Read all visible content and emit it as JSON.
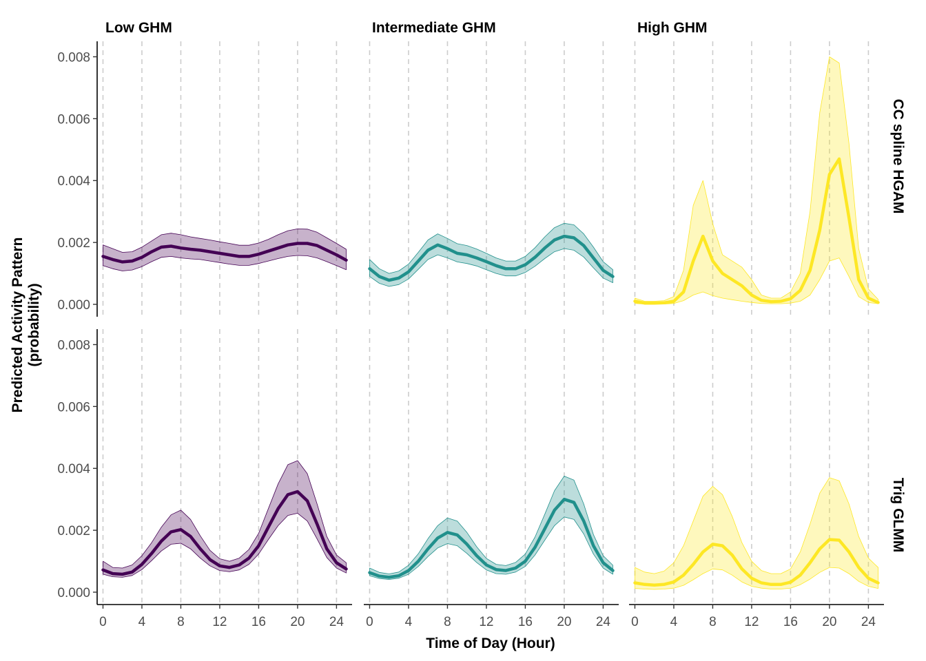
{
  "chart_data": {
    "type": "line",
    "xlabel": "Time of Day (Hour)",
    "ylabel_line1": "Predicted Activity Pattern",
    "ylabel_line2": "(probability)",
    "xlim": [
      -0.6,
      25.6
    ],
    "ylim": [
      -0.0004,
      0.0085
    ],
    "xticks": [
      0,
      4,
      8,
      12,
      16,
      20,
      24
    ],
    "yticks": [
      0.0,
      0.002,
      0.004,
      0.006,
      0.008
    ],
    "ytick_labels": [
      "0.000",
      "0.002",
      "0.004",
      "0.006",
      "0.008"
    ],
    "grid": "vertical dashed at x ticks",
    "columns": [
      "Low GHM",
      "Intermediate GHM",
      "High GHM"
    ],
    "rows": [
      "CC spline HGAM",
      "Trig GLMM"
    ],
    "colors": {
      "Low GHM": "#440154",
      "Intermediate GHM": "#21908C",
      "High GHM": "#FDE725"
    },
    "x": [
      0,
      1,
      2,
      3,
      4,
      5,
      6,
      7,
      8,
      9,
      10,
      11,
      12,
      13,
      14,
      15,
      16,
      17,
      18,
      19,
      20,
      21,
      22,
      23,
      24,
      25
    ],
    "panels": [
      {
        "row": "CC spline HGAM",
        "column": "Low GHM",
        "fit": [
          0.00155,
          0.00145,
          0.00137,
          0.0014,
          0.00152,
          0.0017,
          0.00185,
          0.00188,
          0.00182,
          0.00178,
          0.00175,
          0.0017,
          0.00165,
          0.0016,
          0.00155,
          0.00155,
          0.00162,
          0.00172,
          0.00182,
          0.00192,
          0.00197,
          0.00197,
          0.0019,
          0.00175,
          0.0016,
          0.00143
        ],
        "lower": [
          0.00125,
          0.00115,
          0.00108,
          0.00111,
          0.00122,
          0.00138,
          0.00152,
          0.00155,
          0.0015,
          0.00147,
          0.00145,
          0.0014,
          0.00135,
          0.0013,
          0.00126,
          0.00126,
          0.00132,
          0.0014,
          0.00148,
          0.00155,
          0.00158,
          0.00157,
          0.0015,
          0.00138,
          0.00125,
          0.00112
        ],
        "upper": [
          0.00192,
          0.0018,
          0.00168,
          0.0017,
          0.00185,
          0.00205,
          0.00225,
          0.0023,
          0.00225,
          0.00218,
          0.00213,
          0.00208,
          0.00202,
          0.00197,
          0.00191,
          0.00191,
          0.00198,
          0.0021,
          0.00225,
          0.00238,
          0.00244,
          0.00243,
          0.00233,
          0.00215,
          0.00197,
          0.00178
        ]
      },
      {
        "row": "CC spline HGAM",
        "column": "Intermediate GHM",
        "fit": [
          0.00115,
          0.0009,
          0.00078,
          0.00085,
          0.00105,
          0.0014,
          0.00175,
          0.00192,
          0.0018,
          0.00165,
          0.0016,
          0.0015,
          0.00138,
          0.00125,
          0.00115,
          0.00115,
          0.00128,
          0.00152,
          0.00182,
          0.00208,
          0.0022,
          0.00215,
          0.0019,
          0.0015,
          0.0011,
          0.0009
        ],
        "lower": [
          0.0009,
          0.00068,
          0.00058,
          0.00064,
          0.00082,
          0.00113,
          0.00145,
          0.0016,
          0.0015,
          0.00137,
          0.00132,
          0.00124,
          0.00112,
          0.001,
          0.00092,
          0.00092,
          0.00103,
          0.00123,
          0.00148,
          0.0017,
          0.0018,
          0.00175,
          0.00153,
          0.00118,
          0.00085,
          0.0007
        ],
        "upper": [
          0.00145,
          0.00115,
          0.001,
          0.00108,
          0.0013,
          0.00168,
          0.00208,
          0.00228,
          0.00213,
          0.00196,
          0.0019,
          0.00179,
          0.00165,
          0.0015,
          0.0014,
          0.0014,
          0.00155,
          0.00183,
          0.00218,
          0.00248,
          0.00262,
          0.00257,
          0.00228,
          0.00185,
          0.00138,
          0.00112
        ]
      },
      {
        "row": "CC spline HGAM",
        "column": "High GHM",
        "fit": [
          0.0001,
          4e-05,
          4e-05,
          5e-05,
          0.0001,
          0.0004,
          0.0014,
          0.0022,
          0.0014,
          0.001,
          0.0008,
          0.0006,
          0.0003,
          0.00013,
          9e-05,
          0.0001,
          0.00018,
          0.00045,
          0.0011,
          0.0024,
          0.0042,
          0.0047,
          0.0028,
          0.0008,
          0.0002,
          6e-05
        ],
        "lower": [
          3e-05,
          1e-05,
          1e-05,
          1e-05,
          3e-05,
          0.00012,
          0.0003,
          0.0004,
          0.00028,
          0.0002,
          0.00015,
          0.0001,
          6e-05,
          3e-05,
          2e-05,
          2e-05,
          4e-05,
          0.0001,
          0.0003,
          0.0008,
          0.0014,
          0.0015,
          0.0009,
          0.00025,
          6e-05,
          2e-05
        ],
        "upper": [
          0.0002,
          0.0001,
          0.0001,
          0.00012,
          0.00025,
          0.0011,
          0.0032,
          0.004,
          0.0026,
          0.0016,
          0.0014,
          0.0012,
          0.0008,
          0.0003,
          0.0002,
          0.0002,
          0.0004,
          0.001,
          0.003,
          0.0062,
          0.008,
          0.0078,
          0.0052,
          0.0018,
          0.0005,
          0.00016
        ]
      },
      {
        "row": "Trig GLMM",
        "column": "Low GHM",
        "fit": [
          0.00072,
          0.0006,
          0.00058,
          0.00065,
          0.0009,
          0.00125,
          0.00165,
          0.00195,
          0.00202,
          0.0018,
          0.0014,
          0.00105,
          0.00085,
          0.0008,
          0.00088,
          0.0011,
          0.0015,
          0.0021,
          0.0027,
          0.00315,
          0.00325,
          0.00295,
          0.0022,
          0.0014,
          0.00095,
          0.00075
        ],
        "lower": [
          0.00058,
          0.0005,
          0.00048,
          0.00054,
          0.00073,
          0.00102,
          0.00133,
          0.00155,
          0.00158,
          0.0014,
          0.0011,
          0.00085,
          0.0007,
          0.00066,
          0.00072,
          0.0009,
          0.00123,
          0.0017,
          0.00215,
          0.00248,
          0.00255,
          0.0023,
          0.00172,
          0.00112,
          0.00078,
          0.00062
        ],
        "upper": [
          0.001,
          0.0008,
          0.00078,
          0.00088,
          0.00118,
          0.0016,
          0.0021,
          0.0025,
          0.00265,
          0.00235,
          0.00182,
          0.00135,
          0.00108,
          0.001,
          0.0011,
          0.00138,
          0.0019,
          0.0027,
          0.0035,
          0.00412,
          0.00425,
          0.00383,
          0.00285,
          0.0018,
          0.0012,
          0.00095
        ]
      },
      {
        "row": "Trig GLMM",
        "column": "Intermediate GHM",
        "fit": [
          0.00063,
          0.00052,
          0.00048,
          0.00053,
          0.0007,
          0.001,
          0.0014,
          0.00175,
          0.00193,
          0.00185,
          0.00155,
          0.00118,
          0.00088,
          0.00073,
          0.0007,
          0.00078,
          0.001,
          0.00145,
          0.00205,
          0.00265,
          0.003,
          0.0029,
          0.0023,
          0.0015,
          0.00095,
          0.0007
        ],
        "lower": [
          0.00053,
          0.00044,
          0.00041,
          0.00045,
          0.00058,
          0.00083,
          0.00115,
          0.00143,
          0.00157,
          0.0015,
          0.00125,
          0.00096,
          0.00072,
          0.0006,
          0.00058,
          0.00065,
          0.00083,
          0.0012,
          0.00168,
          0.00215,
          0.00243,
          0.00235,
          0.00188,
          0.00123,
          0.00078,
          0.00058
        ],
        "upper": [
          0.00078,
          0.00064,
          0.00059,
          0.00065,
          0.00087,
          0.00124,
          0.00173,
          0.00215,
          0.0024,
          0.0023,
          0.00193,
          0.00147,
          0.00109,
          0.0009,
          0.00086,
          0.00096,
          0.00123,
          0.00178,
          0.00252,
          0.00328,
          0.00375,
          0.00362,
          0.00285,
          0.00186,
          0.00118,
          0.00087
        ]
      },
      {
        "row": "Trig GLMM",
        "column": "High GHM",
        "fit": [
          0.0003,
          0.00025,
          0.00023,
          0.00025,
          0.00033,
          0.00055,
          0.0009,
          0.0013,
          0.00155,
          0.0015,
          0.0012,
          0.00075,
          0.00045,
          0.0003,
          0.00025,
          0.00025,
          0.00032,
          0.00055,
          0.00095,
          0.0014,
          0.0017,
          0.00168,
          0.0013,
          0.0008,
          0.00045,
          0.0003
        ],
        "lower": [
          0.00012,
          0.0001,
          9e-05,
          0.0001,
          0.00013,
          0.00022,
          0.0004,
          0.0006,
          0.00075,
          0.00072,
          0.00055,
          0.00033,
          0.00019,
          0.00013,
          0.0001,
          0.0001,
          0.00013,
          0.00024,
          0.00042,
          0.00064,
          0.0008,
          0.00078,
          0.0006,
          0.00035,
          0.00019,
          0.00012
        ],
        "upper": [
          0.0008,
          0.00065,
          0.0006,
          0.00068,
          0.00095,
          0.0015,
          0.0023,
          0.0031,
          0.00342,
          0.00315,
          0.00245,
          0.0016,
          0.001,
          0.0007,
          0.0006,
          0.0006,
          0.00075,
          0.0013,
          0.0022,
          0.0032,
          0.0037,
          0.0036,
          0.00285,
          0.0018,
          0.0011,
          0.0008
        ]
      }
    ]
  }
}
